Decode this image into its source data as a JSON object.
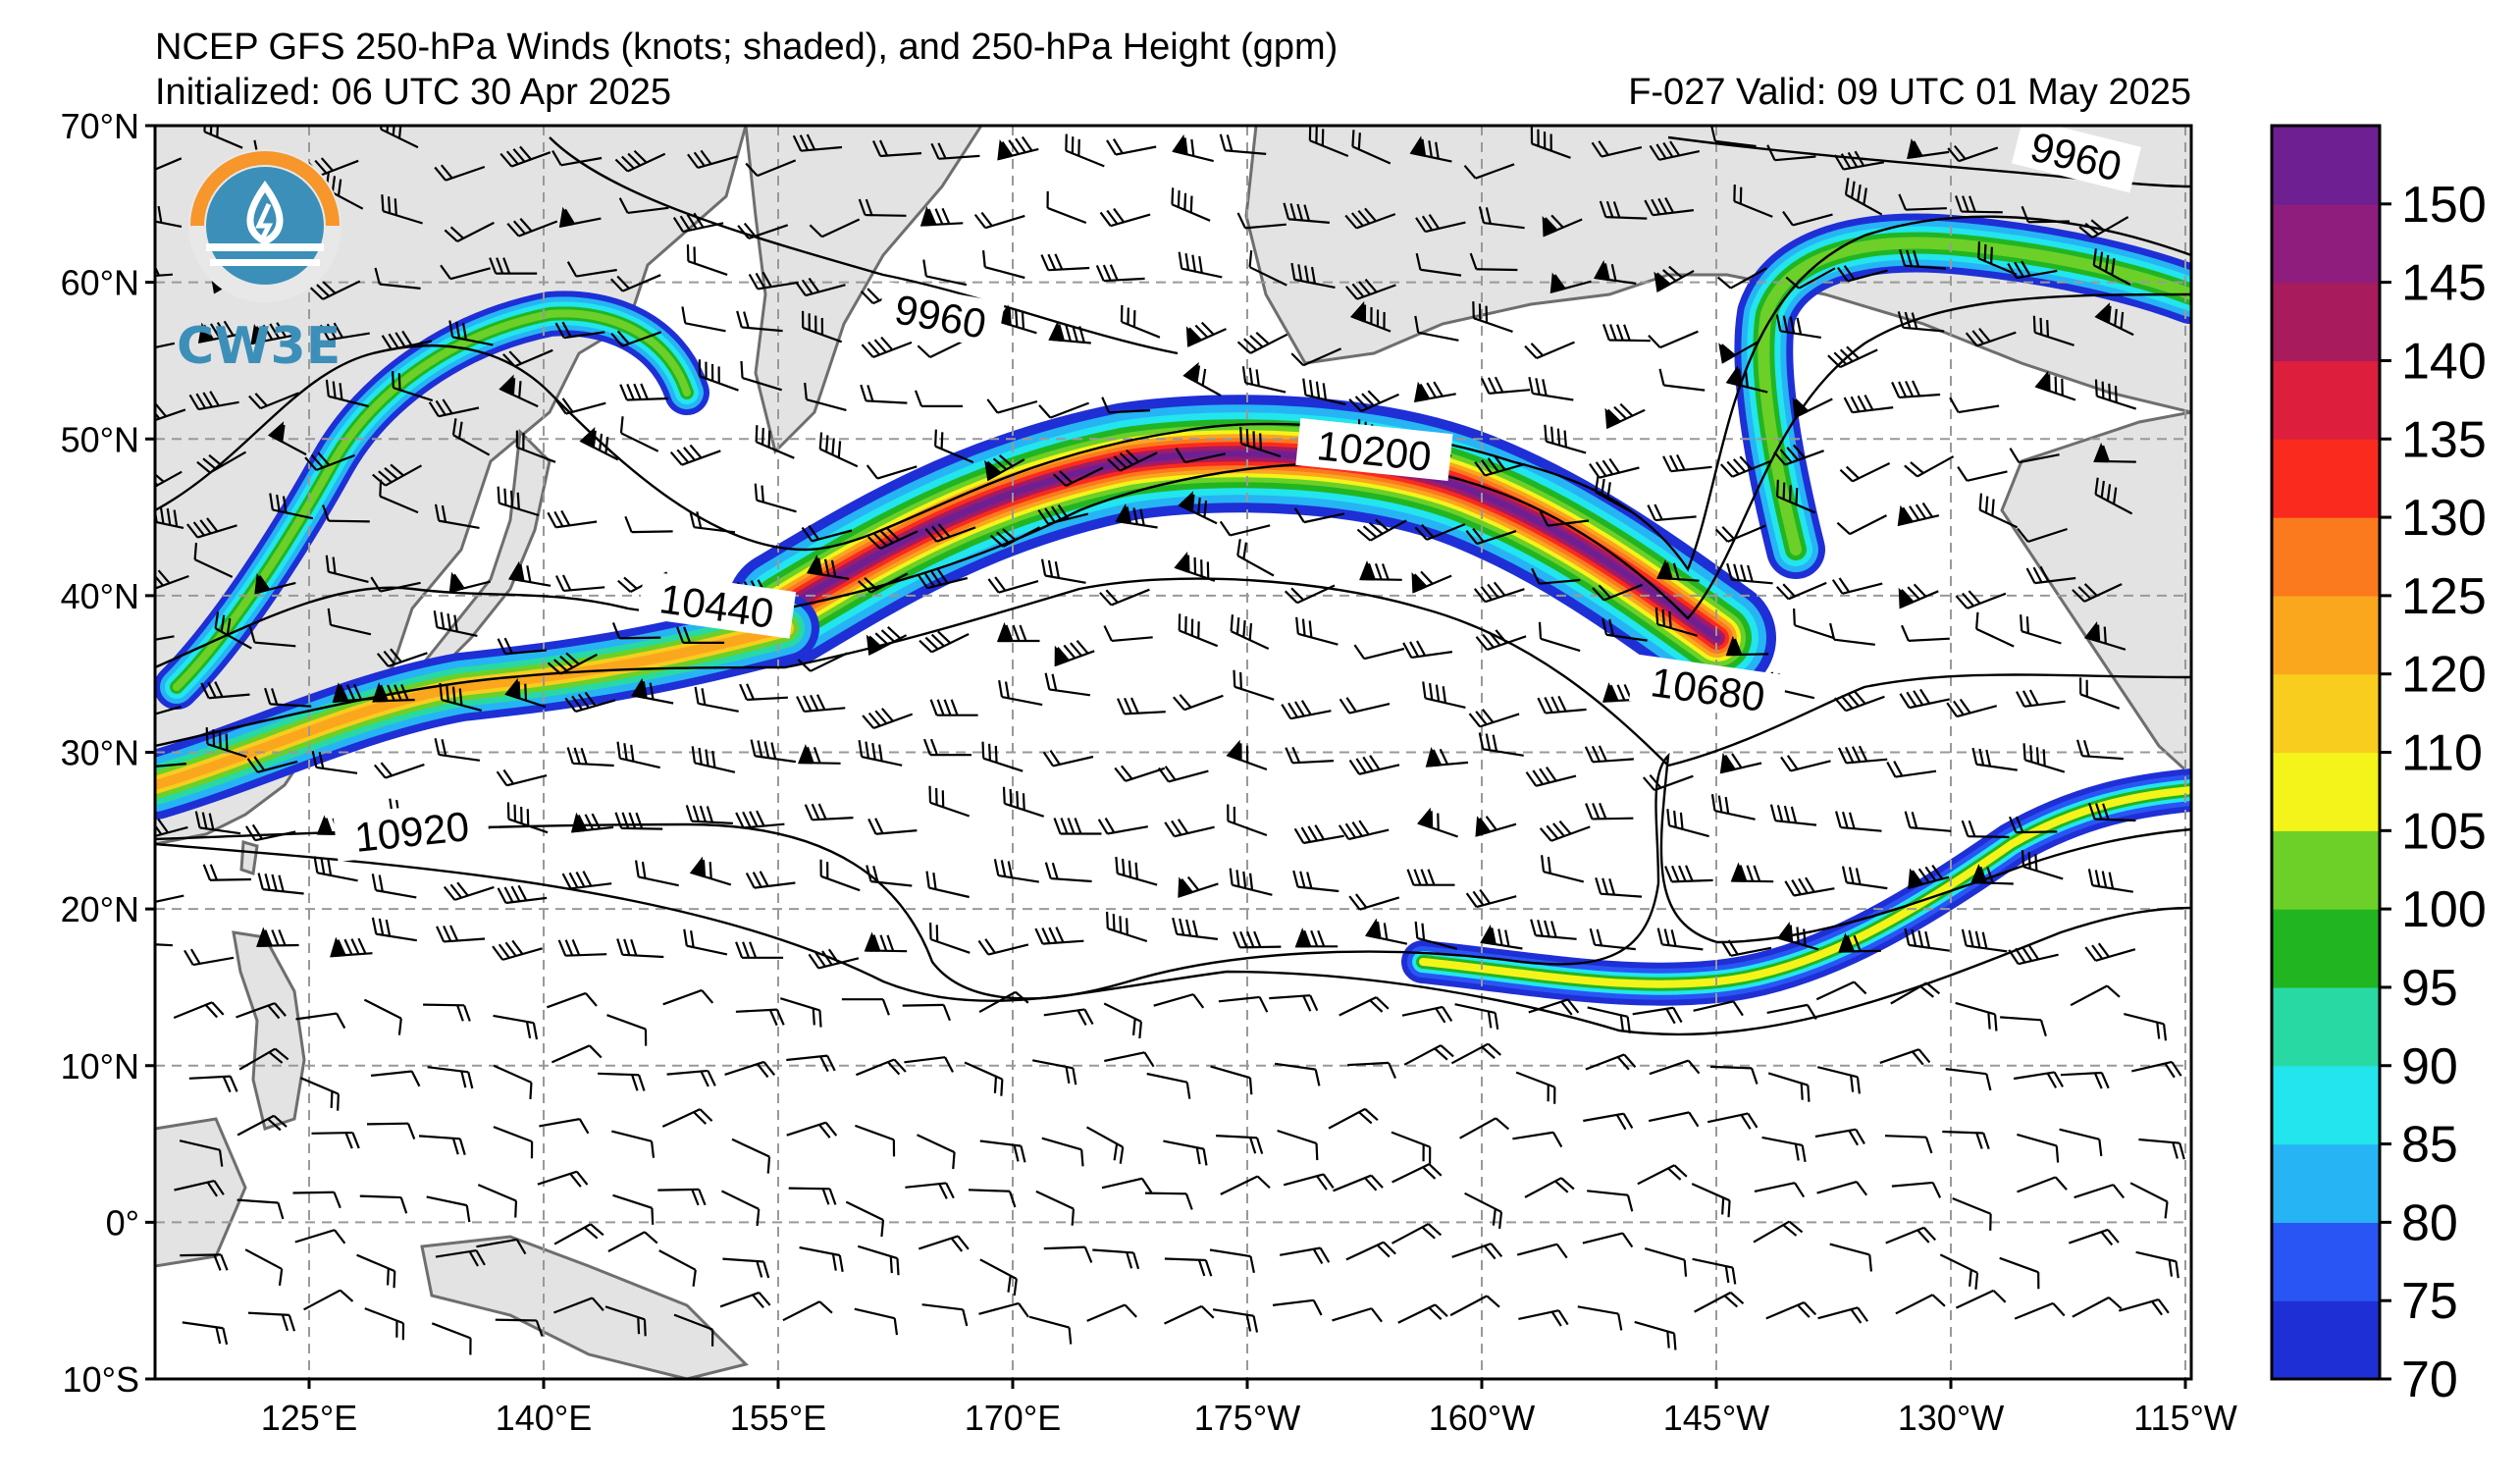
{
  "header": {
    "title": "NCEP GFS 250-hPa Winds (knots; shaded), and 250-hPa Height (gpm)",
    "initialized": "Initialized: 06 UTC 30 Apr 2025",
    "valid": "F-027  Valid: 09 UTC 01 May 2025"
  },
  "logo": {
    "text": "CW3E",
    "icon": "cw3e-logo-icon"
  },
  "map": {
    "lat_labels": [
      "70°N",
      "60°N",
      "50°N",
      "40°N",
      "30°N",
      "20°N",
      "10°N",
      "0°",
      "10°S"
    ],
    "lon_labels": [
      "125°E",
      "140°E",
      "155°E",
      "170°E",
      "175°W",
      "160°W",
      "145°W",
      "130°W",
      "115°W"
    ],
    "contour_labels": [
      "9960",
      "9960",
      "10200",
      "10440",
      "10680",
      "10920"
    ],
    "colors": {
      "land": "#e3e3e3",
      "coast": "#6e6e6e",
      "grid": "#999999",
      "contour": "#000000"
    }
  },
  "colorbar": {
    "labels": [
      "70",
      "75",
      "80",
      "85",
      "90",
      "95",
      "100",
      "105",
      "110",
      "120",
      "125",
      "130",
      "135",
      "140",
      "145",
      "150"
    ],
    "colors": [
      "#1f2fd6",
      "#2a55f5",
      "#27b4f5",
      "#22e5ee",
      "#28d9a4",
      "#22b522",
      "#6cd028",
      "#f4f41a",
      "#f8cd1e",
      "#fba71e",
      "#fb7a1e",
      "#fb2a1e",
      "#dd1e3d",
      "#a81b5d",
      "#8e1d7d",
      "#6e1f91"
    ]
  }
}
